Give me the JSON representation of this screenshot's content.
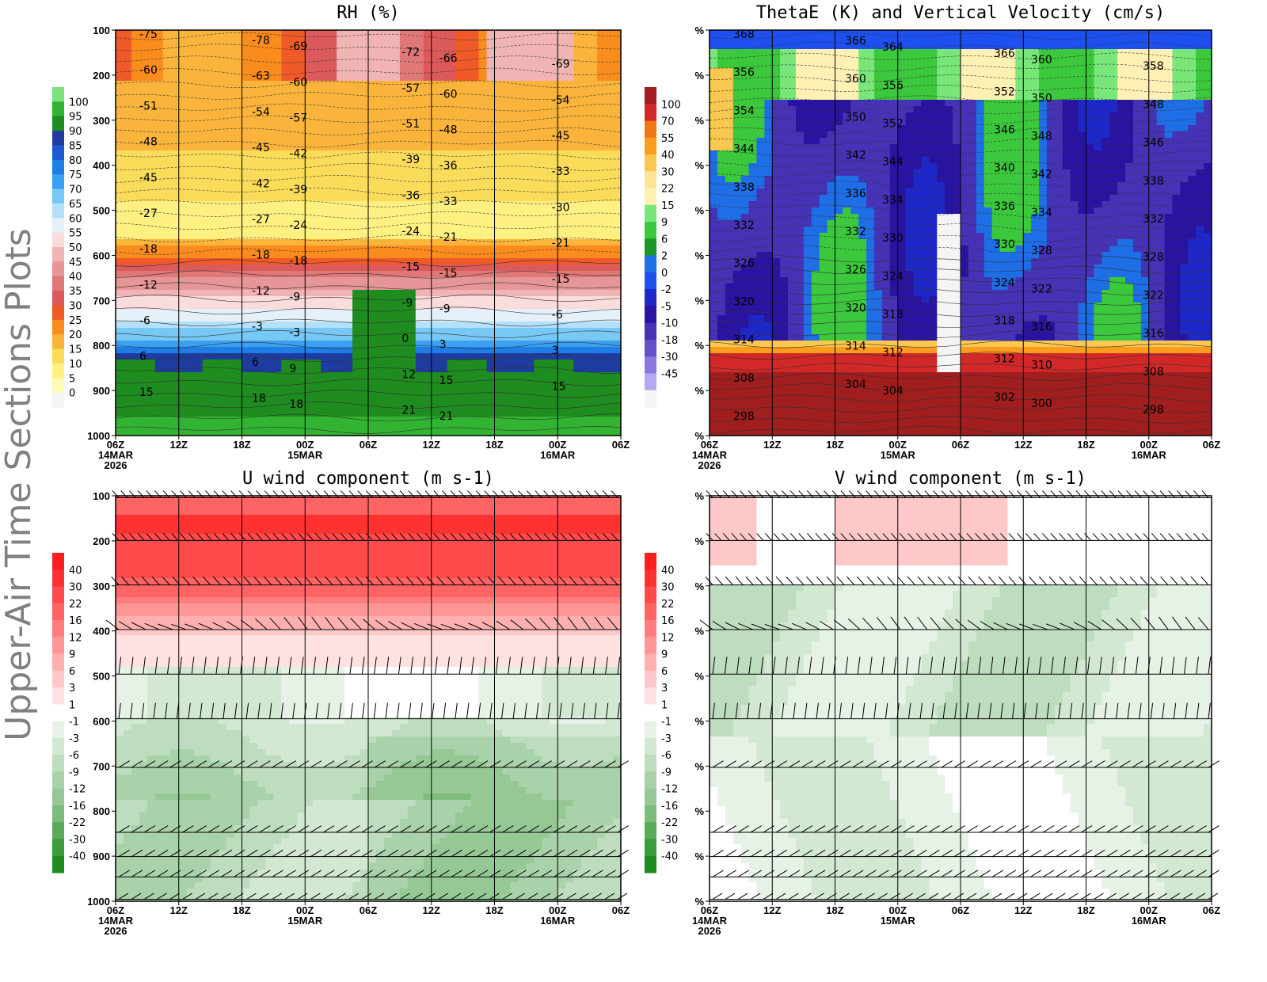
{
  "page_title": "Upper-Air Time Sections Plots",
  "chart_data": [
    {
      "id": "rh",
      "type": "heatmap",
      "title": "RH (%)",
      "x_ticks": [
        "06Z",
        "12Z",
        "18Z",
        "00Z",
        "06Z",
        "12Z",
        "18Z",
        "00Z",
        "06Z"
      ],
      "x_dates": [
        {
          "at": 0,
          "label": "14MAR"
        },
        {
          "at": 3,
          "label": "15MAR"
        },
        {
          "at": 7,
          "label": "16MAR"
        }
      ],
      "x_year": "2026",
      "y_ticks": [
        "100",
        "200",
        "300",
        "400",
        "500",
        "600",
        "700",
        "800",
        "900",
        "1000"
      ],
      "colorbar": {
        "labels": [
          "100",
          "95",
          "90",
          "85",
          "80",
          "75",
          "70",
          "65",
          "60",
          "55",
          "50",
          "45",
          "40",
          "35",
          "30",
          "25",
          "20",
          "15",
          "10",
          "5",
          "0"
        ],
        "colors": [
          "#7ce27c",
          "#32b432",
          "#1e8c1e",
          "#1e3ca0",
          "#1e5ad2",
          "#1e7ee6",
          "#3ca0f0",
          "#78c8f5",
          "#b4e0fa",
          "#e6f0f8",
          "#fadcdc",
          "#f0b4b4",
          "#e69696",
          "#e07878",
          "#dc5a5a",
          "#f05a28",
          "#fa8c1e",
          "#fab43c",
          "#fadc5a",
          "#fff082",
          "#fffab4",
          "#f5f5f5"
        ]
      },
      "contour_labels": [
        "-75",
        "-78",
        "-69",
        "-72",
        "-66",
        "-69",
        "-60",
        "-63",
        "-60",
        "-57",
        "-60",
        "-54",
        "-51",
        "-54",
        "-57",
        "-51",
        "-48",
        "-45",
        "-48",
        "-45",
        "-42",
        "-39",
        "-36",
        "-33",
        "-45",
        "-42",
        "-39",
        "-36",
        "-33",
        "-30",
        "-27",
        "-27",
        "-24",
        "-24",
        "-21",
        "-21",
        "-18",
        "-18",
        "-18",
        "-15",
        "-15",
        "-15",
        "-12",
        "-12",
        "-9",
        "-9",
        "-9",
        "-6",
        "-6",
        "-3",
        "-3",
        "0",
        "3",
        "3",
        "6",
        "6",
        "9",
        "12",
        "15",
        "15",
        "15",
        "18",
        "18",
        "21",
        "21"
      ]
    },
    {
      "id": "thetae",
      "type": "heatmap",
      "title": "ThetaE (K) and Vertical Velocity (cm/s)",
      "x_ticks": [
        "06Z",
        "12Z",
        "18Z",
        "00Z",
        "06Z",
        "12Z",
        "18Z",
        "00Z",
        "06Z"
      ],
      "x_dates": [
        {
          "at": 0,
          "label": "14MAR"
        },
        {
          "at": 3,
          "label": "15MAR"
        },
        {
          "at": 7,
          "label": "16MAR"
        }
      ],
      "x_year": "2026",
      "y_tick_label": "%",
      "colorbar": {
        "labels": [
          "100",
          "70",
          "55",
          "40",
          "30",
          "22",
          "15",
          "9",
          "6",
          "2",
          "0",
          "-2",
          "-5",
          "-10",
          "-18",
          "-30",
          "-45"
        ],
        "colors": [
          "#a01e1e",
          "#d22828",
          "#f07814",
          "#fa9c1e",
          "#fac850",
          "#fae696",
          "#fff0b4",
          "#78e678",
          "#3cc83c",
          "#1e9628",
          "#1e6ee6",
          "#1e50f0",
          "#1e28c8",
          "#2814a0",
          "#4632b4",
          "#6450c8",
          "#8c78dc",
          "#b4aaf0",
          "#f5f5f5"
        ]
      },
      "contour_labels": [
        "368",
        "366",
        "364",
        "366",
        "360",
        "358",
        "356",
        "360",
        "356",
        "352",
        "350",
        "348",
        "354",
        "350",
        "352",
        "346",
        "348",
        "346",
        "344",
        "342",
        "344",
        "340",
        "342",
        "338",
        "338",
        "336",
        "334",
        "336",
        "334",
        "332",
        "332",
        "332",
        "330",
        "330",
        "328",
        "328",
        "326",
        "326",
        "324",
        "324",
        "322",
        "322",
        "320",
        "320",
        "318",
        "318",
        "316",
        "316",
        "314",
        "314",
        "312",
        "312",
        "310",
        "308",
        "308",
        "304",
        "304",
        "302",
        "300",
        "298",
        "298"
      ]
    },
    {
      "id": "uwind",
      "type": "heatmap",
      "title": "U wind component (m s-1)",
      "x_ticks": [
        "06Z",
        "12Z",
        "18Z",
        "00Z",
        "06Z",
        "12Z",
        "18Z",
        "00Z",
        "06Z"
      ],
      "x_dates": [
        {
          "at": 0,
          "label": "14MAR"
        },
        {
          "at": 3,
          "label": "15MAR"
        },
        {
          "at": 7,
          "label": "16MAR"
        }
      ],
      "x_year": "2026",
      "y_ticks": [
        "100",
        "200",
        "300",
        "400",
        "500",
        "600",
        "700",
        "800",
        "900",
        "1000"
      ],
      "colorbar": {
        "labels": [
          "40",
          "30",
          "22",
          "16",
          "12",
          "9",
          "6",
          "3",
          "1",
          "-1",
          "-3",
          "-6",
          "-9",
          "-12",
          "-16",
          "-22",
          "-30",
          "-40"
        ],
        "colors": [
          "#ff1e1e",
          "#ff3232",
          "#ff4b4b",
          "#ff6464",
          "#ff7d7d",
          "#ff9696",
          "#ffafaf",
          "#ffc8c8",
          "#ffe1e1",
          "#ffffff",
          "#e6f2e6",
          "#d2e8d2",
          "#bedcbe",
          "#aad2aa",
          "#96c896",
          "#7dbc7d",
          "#5aaa5a",
          "#3c9c3c",
          "#1e8c1e"
        ]
      }
    },
    {
      "id": "vwind",
      "type": "heatmap",
      "title": "V wind component (m s-1)",
      "x_ticks": [
        "06Z",
        "12Z",
        "18Z",
        "00Z",
        "06Z",
        "12Z",
        "18Z",
        "00Z",
        "06Z"
      ],
      "x_dates": [
        {
          "at": 0,
          "label": "14MAR"
        },
        {
          "at": 3,
          "label": "15MAR"
        },
        {
          "at": 7,
          "label": "16MAR"
        }
      ],
      "x_year": "2026",
      "y_tick_label": "%",
      "colorbar": {
        "labels": [
          "40",
          "30",
          "22",
          "16",
          "12",
          "9",
          "6",
          "3",
          "1",
          "-1",
          "-3",
          "-6",
          "-9",
          "-12",
          "-16",
          "-22",
          "-30",
          "-40"
        ],
        "colors": [
          "#ff1e1e",
          "#ff3232",
          "#ff4b4b",
          "#ff6464",
          "#ff7d7d",
          "#ff9696",
          "#ffafaf",
          "#ffc8c8",
          "#ffe1e1",
          "#ffffff",
          "#e6f2e6",
          "#d2e8d2",
          "#bedcbe",
          "#aad2aa",
          "#96c896",
          "#7dbc7d",
          "#5aaa5a",
          "#3c9c3c",
          "#1e8c1e"
        ]
      }
    }
  ]
}
